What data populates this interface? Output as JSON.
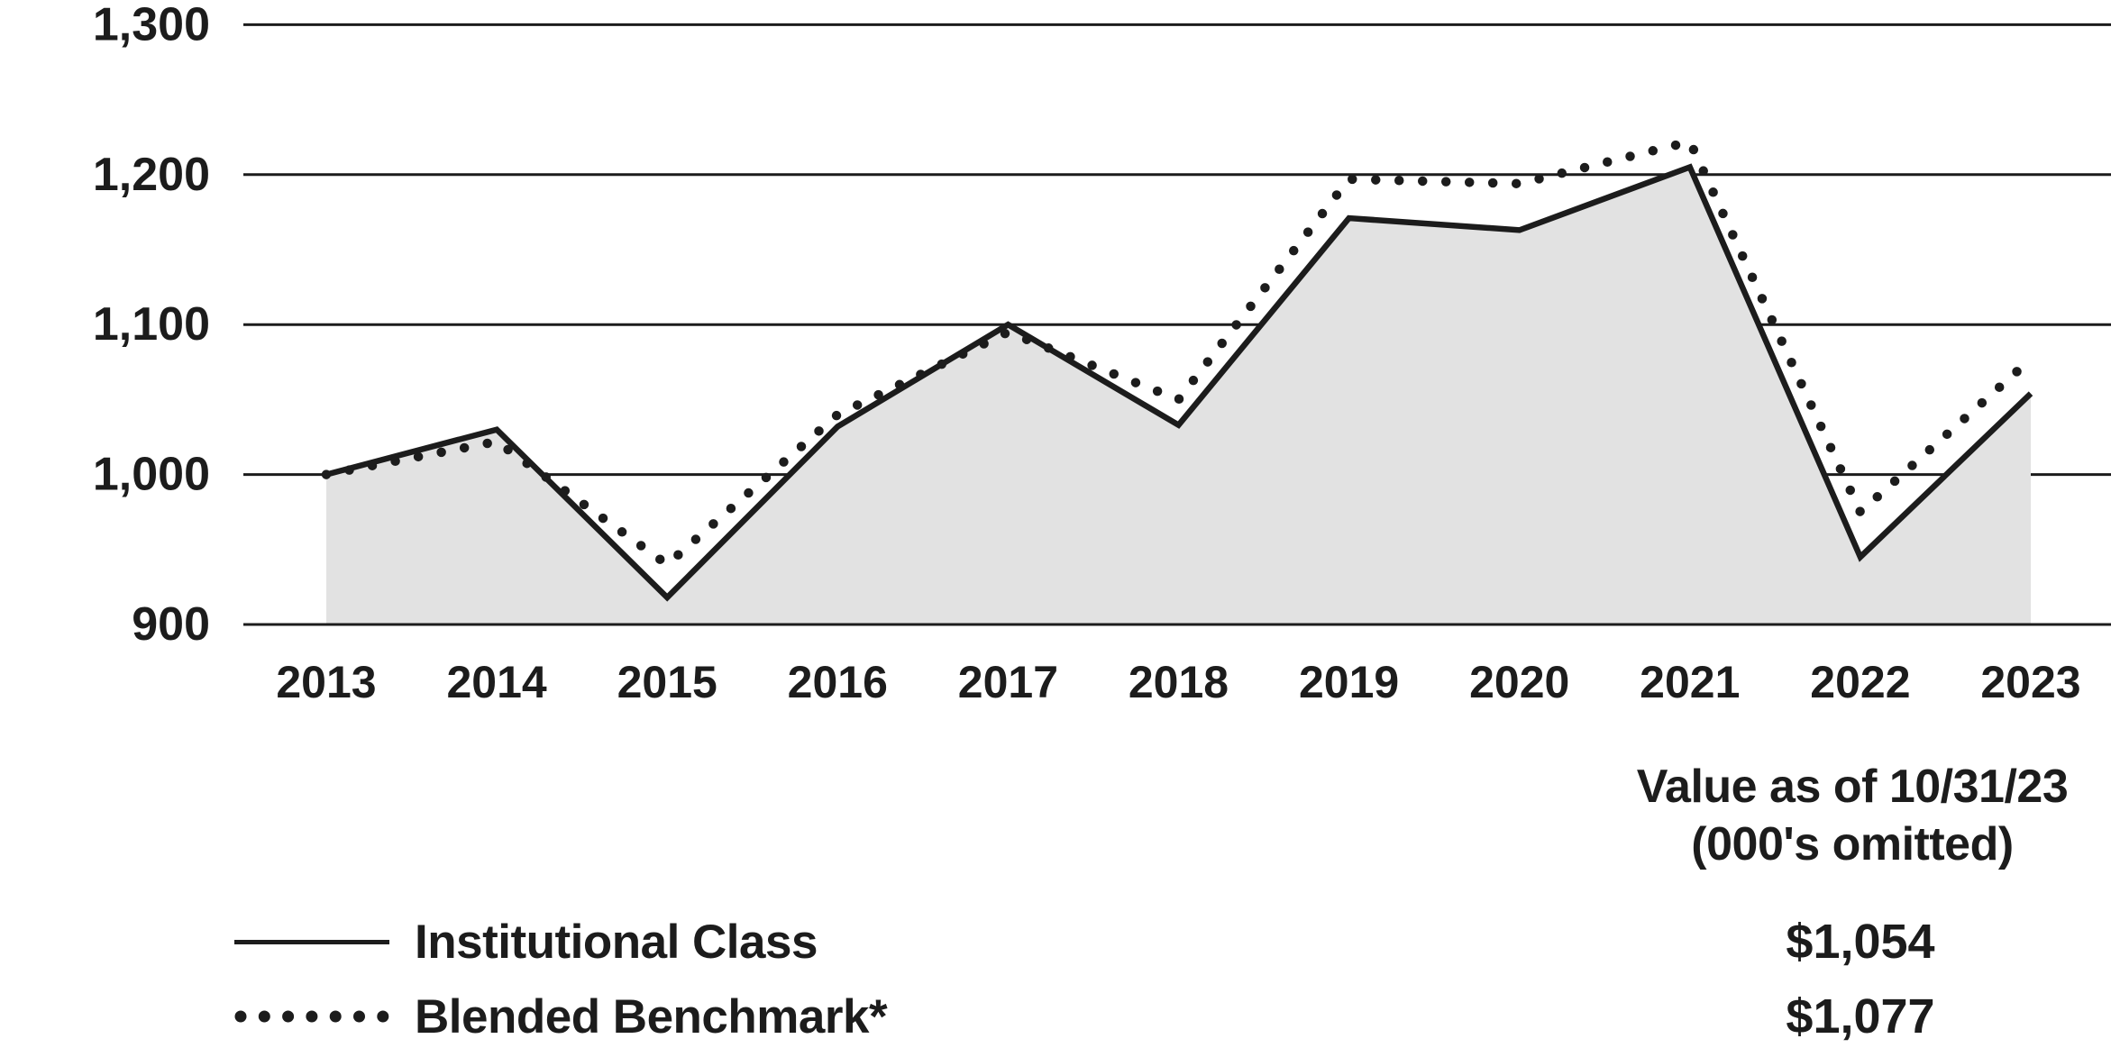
{
  "colors": {
    "ink": "#1c1c1c",
    "area_fill": "#e2e2e2",
    "background": "#ffffff"
  },
  "chart_data": {
    "type": "line",
    "subtype": "area-under-first-series",
    "x": [
      2013,
      2014,
      2015,
      2016,
      2017,
      2018,
      2019,
      2020,
      2021,
      2022,
      2023
    ],
    "x_labels": [
      "2013",
      "2014",
      "2015",
      "2016",
      "2017",
      "2018",
      "2019",
      "2020",
      "2021",
      "2022",
      "2023"
    ],
    "ylim": [
      900,
      1300
    ],
    "y_ticks": [
      {
        "value": 900,
        "label": "900"
      },
      {
        "value": 1000,
        "label": "1,000"
      },
      {
        "value": 1100,
        "label": "1,100"
      },
      {
        "value": 1200,
        "label": "1,200"
      },
      {
        "value": 1300,
        "label": "1,300"
      }
    ],
    "grid": "horizontal-on",
    "legend_position": "bottom-left",
    "series": [
      {
        "name": "Institutional Class",
        "line_style": "solid",
        "area_fill": true,
        "values": [
          1000,
          1030,
          918,
          1032,
          1100,
          1033,
          1171,
          1163,
          1205,
          945,
          1054
        ]
      },
      {
        "name": "Blended Benchmark*",
        "line_style": "dotted",
        "area_fill": false,
        "values": [
          1000,
          1022,
          940,
          1040,
          1095,
          1050,
          1197,
          1194,
          1222,
          975,
          1077
        ]
      }
    ]
  },
  "legend": {
    "items": [
      {
        "label": "Institutional Class",
        "swatch": "solid-line"
      },
      {
        "label": "Blended Benchmark*",
        "swatch": "dotted-line"
      }
    ]
  },
  "value_column": {
    "header_line1": "Value as of 10/31/23",
    "header_line2": "(000's omitted)",
    "values": [
      "$1,054",
      "$1,077"
    ]
  }
}
